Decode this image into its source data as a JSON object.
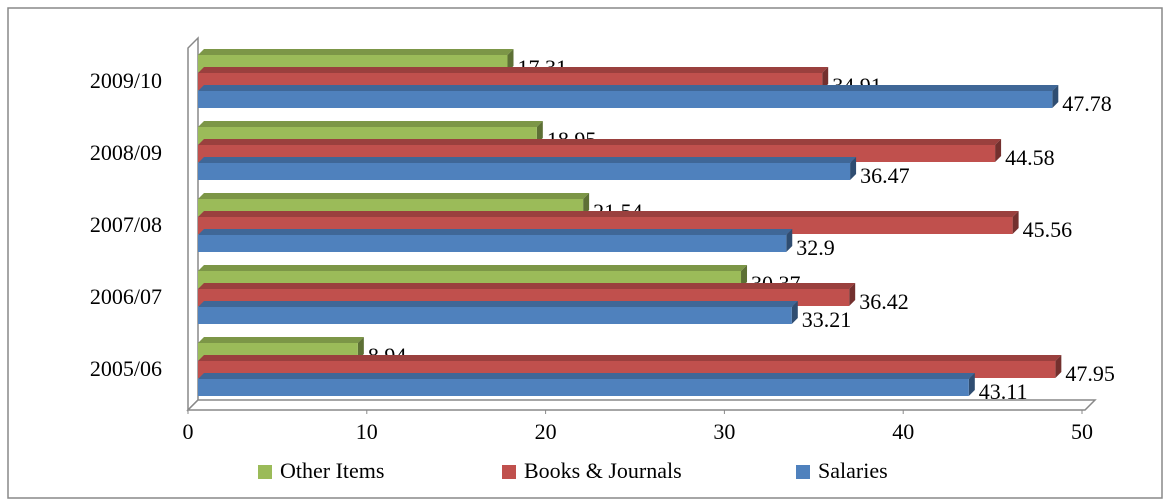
{
  "chart_data": {
    "type": "bar",
    "orientation": "horizontal",
    "categories": [
      "2005/06",
      "2006/07",
      "2007/08",
      "2008/09",
      "2009/10"
    ],
    "series": [
      {
        "name": "Other Items",
        "color": "#9bbb59",
        "values": [
          8.94,
          30.37,
          21.54,
          18.95,
          17.31
        ]
      },
      {
        "name": "Books & Journals",
        "color": "#c0504d",
        "values": [
          47.95,
          36.42,
          45.56,
          44.58,
          34.91
        ]
      },
      {
        "name": "Salaries",
        "color": "#4f81bd",
        "values": [
          43.11,
          33.21,
          32.9,
          36.47,
          47.78
        ]
      }
    ],
    "xlim": [
      0,
      50
    ],
    "xticks": [
      0,
      10,
      20,
      30,
      40,
      50
    ],
    "grid": false,
    "legend": "bottom"
  }
}
